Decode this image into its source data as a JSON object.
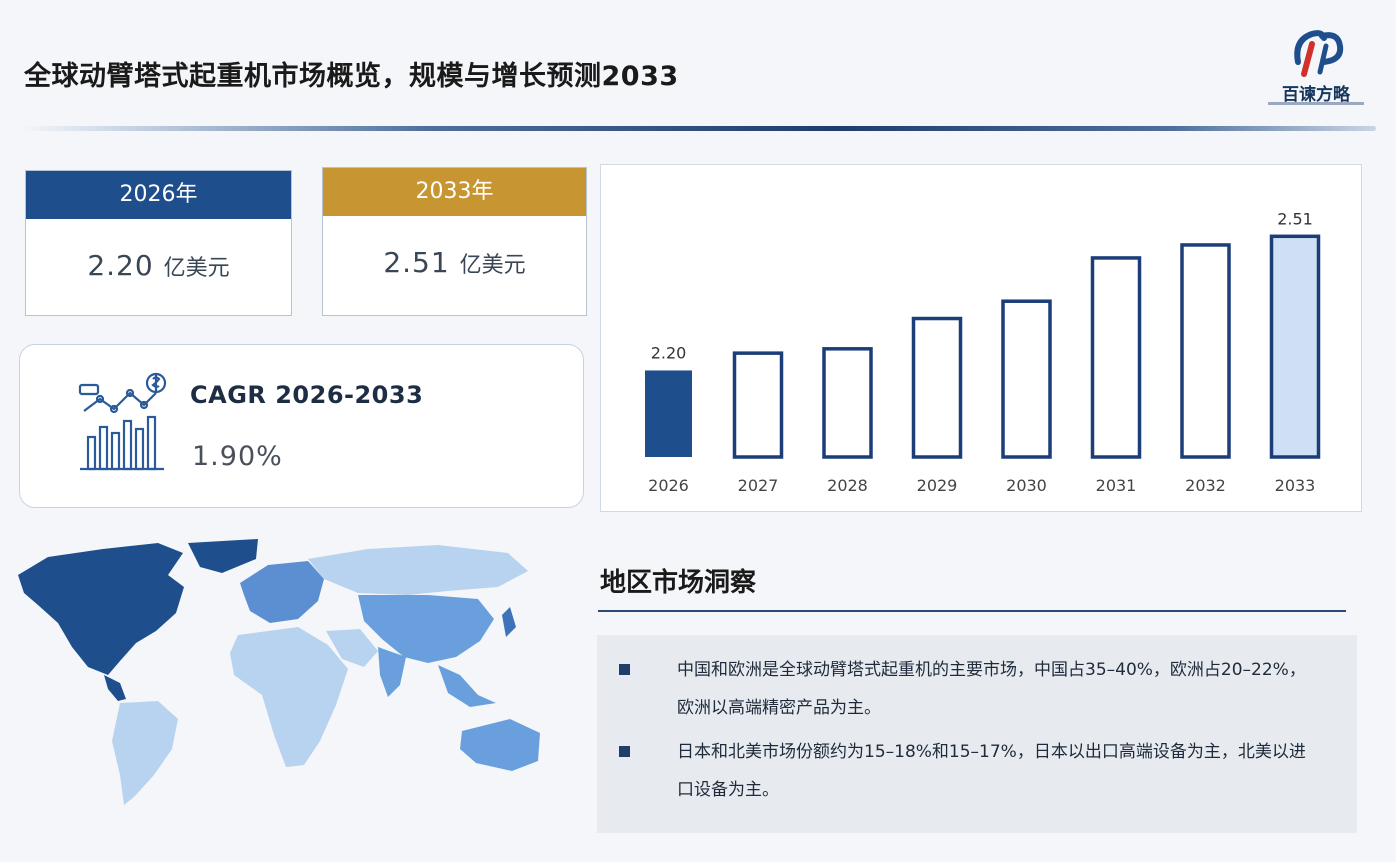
{
  "header": {
    "title": "全球动臂塔式起重机市场概览，规模与增长预测2033",
    "logo_text": "百谏方略"
  },
  "cards": [
    {
      "year": "2026年",
      "value": "2.20",
      "unit": "亿美元",
      "color": "#1f4e8c"
    },
    {
      "year": "2033年",
      "value": "2.51",
      "unit": "亿美元",
      "color": "#c79632"
    }
  ],
  "cagr": {
    "title": "CAGR 2026-2033",
    "value": "1.90%"
  },
  "chart_data": {
    "type": "bar",
    "categories": [
      "2026",
      "2027",
      "2028",
      "2029",
      "2030",
      "2031",
      "2032",
      "2033"
    ],
    "values": [
      2.2,
      2.24,
      2.25,
      2.32,
      2.36,
      2.46,
      2.49,
      2.51
    ],
    "data_labels": {
      "0": "2.20",
      "7": "2.51"
    },
    "ylim": [
      2.0,
      2.55
    ],
    "grid": false,
    "title": "",
    "xlabel": "",
    "ylabel": "",
    "colors": {
      "first": "#1f4e8c",
      "last_fill": "#cfe0f6",
      "outline": "#1b3d78"
    }
  },
  "region": {
    "title": "地区市场洞察",
    "bullets": [
      "中国和欧洲是全球动臂塔式起重机的主要市场，中国占35–40%，欧洲占20–22%，欧洲以高端精密产品为主。",
      "日本和北美市场份额约为15–18%和15–17%，日本以出口高端设备为主，北美以进口设备为主。"
    ]
  }
}
